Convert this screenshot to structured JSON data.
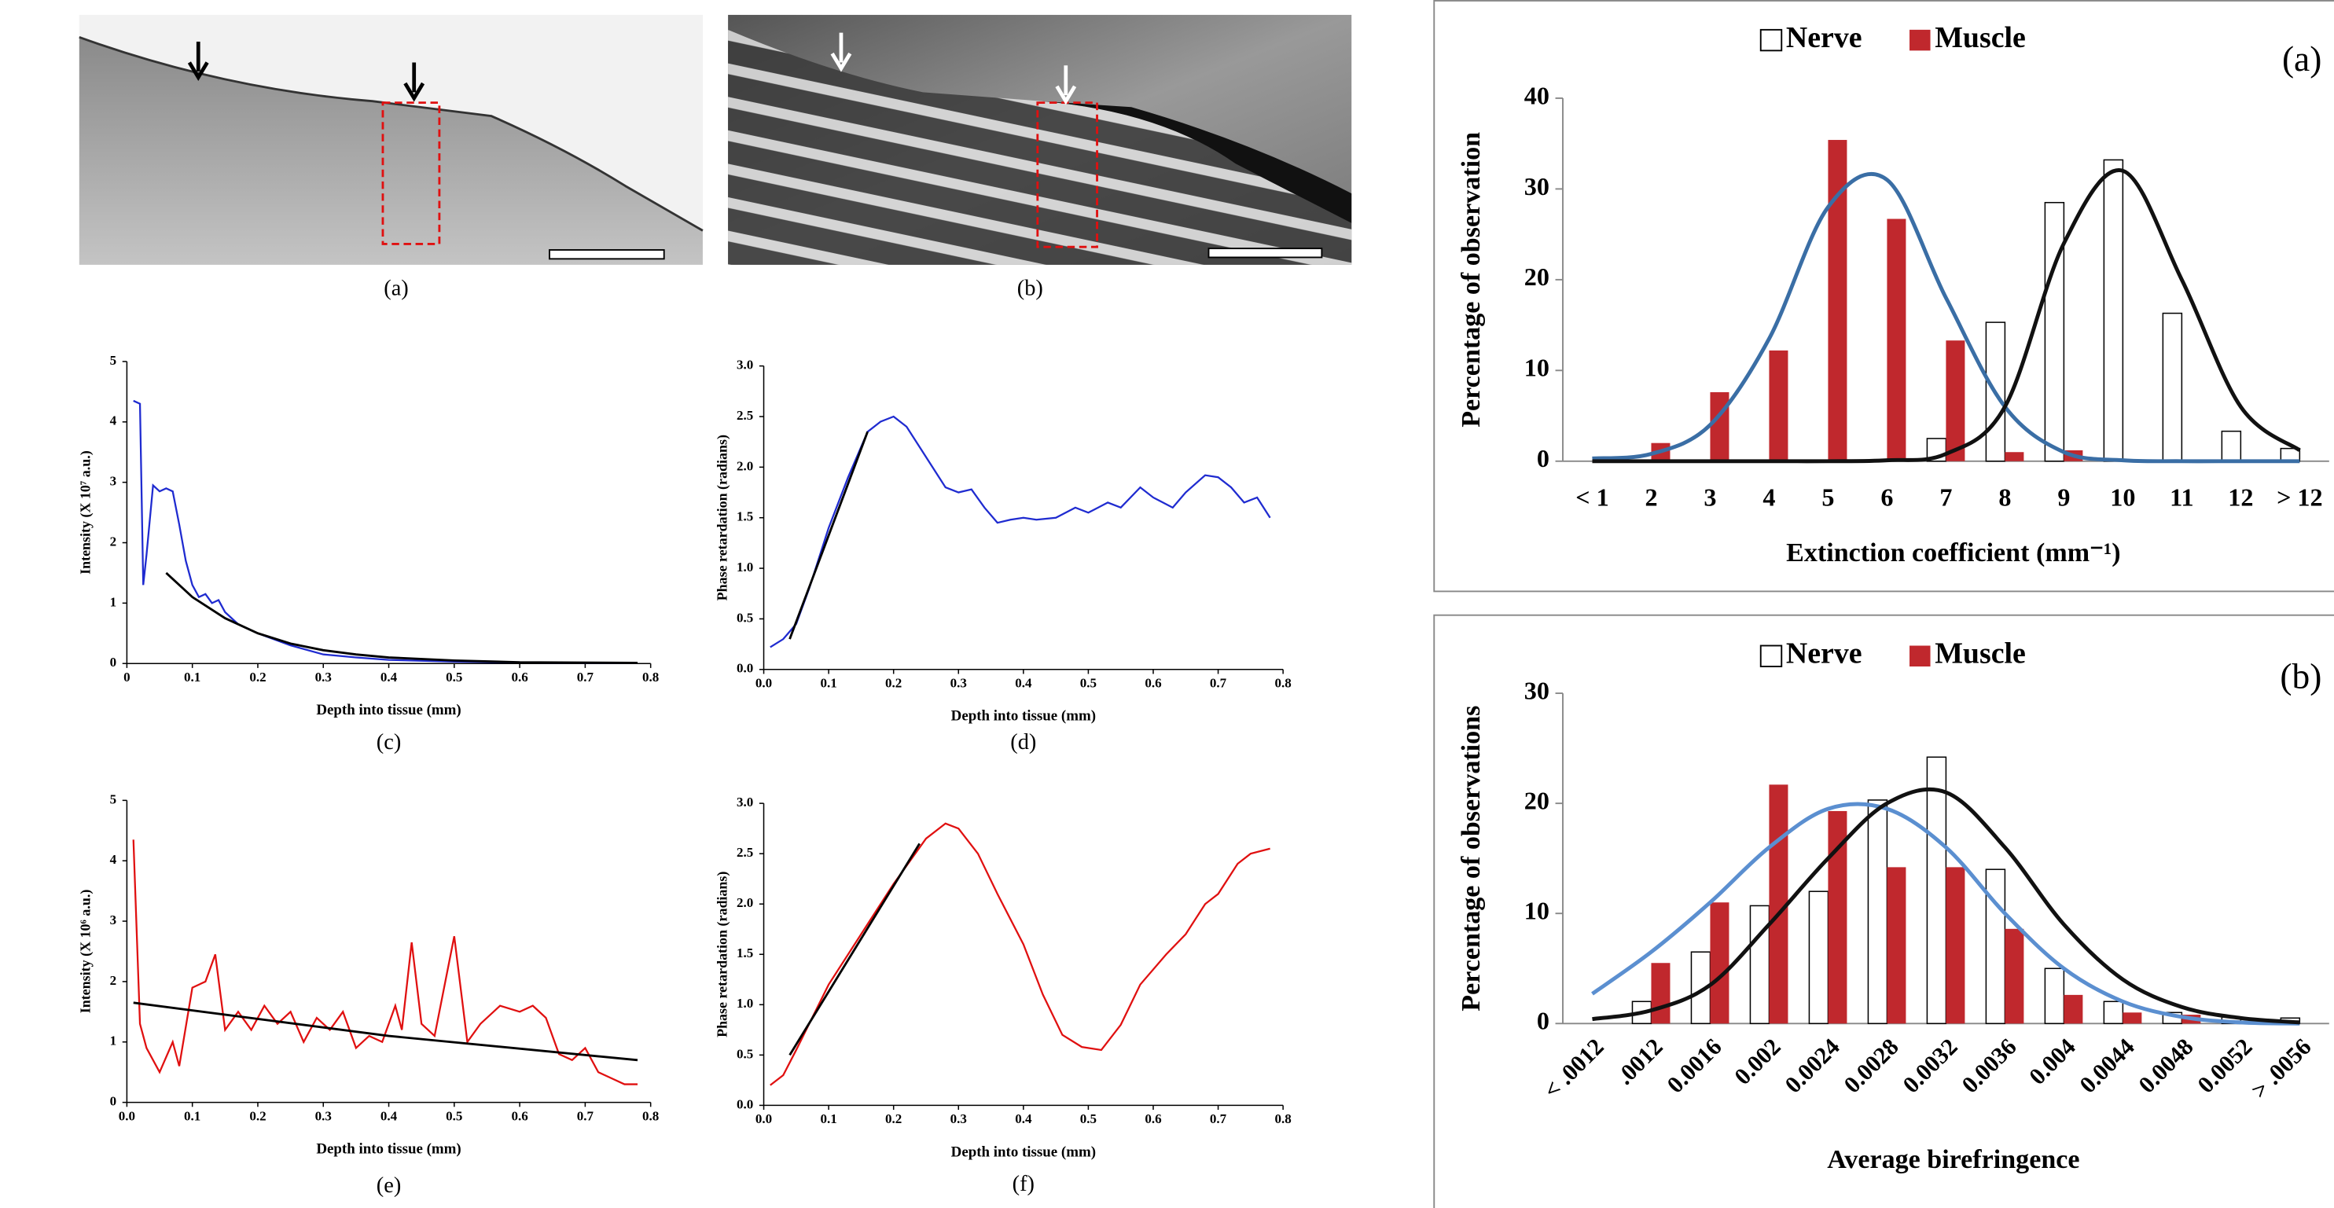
{
  "images": [
    {
      "caption": "(a)"
    },
    {
      "caption": "(b)"
    }
  ],
  "chart_data": [
    {
      "type": "line",
      "caption": "(c)",
      "xlabel": "Depth into tissue (mm)",
      "ylabel": "Intensity (X 10⁷ a.u.)",
      "xlim": [
        0,
        0.8
      ],
      "ylim": [
        0,
        5
      ],
      "xticks": [
        0,
        0.1,
        0.2,
        0.3,
        0.4,
        0.5,
        0.6,
        0.7,
        0.8
      ],
      "yticks": [
        0,
        1,
        2,
        3,
        4,
        5
      ],
      "series": [
        {
          "color": "#1f2bd0",
          "x": [
            0.01,
            0.02,
            0.025,
            0.03,
            0.04,
            0.05,
            0.06,
            0.07,
            0.08,
            0.09,
            0.1,
            0.11,
            0.12,
            0.13,
            0.14,
            0.15,
            0.17,
            0.2,
            0.25,
            0.3,
            0.35,
            0.4,
            0.5,
            0.6,
            0.7,
            0.78
          ],
          "values": [
            4.35,
            4.3,
            1.3,
            1.8,
            2.95,
            2.85,
            2.9,
            2.85,
            2.3,
            1.7,
            1.3,
            1.1,
            1.15,
            1.0,
            1.05,
            0.85,
            0.65,
            0.5,
            0.3,
            0.15,
            0.1,
            0.06,
            0.03,
            0.02,
            0.01,
            0.01
          ]
        },
        {
          "color": "#000000",
          "x": [
            0.06,
            0.1,
            0.15,
            0.2,
            0.25,
            0.3,
            0.35,
            0.4,
            0.5,
            0.6,
            0.78
          ],
          "values": [
            1.5,
            1.1,
            0.75,
            0.5,
            0.33,
            0.22,
            0.15,
            0.1,
            0.05,
            0.02,
            0.01
          ]
        }
      ]
    },
    {
      "type": "line",
      "caption": "(d)",
      "xlabel": "Depth into tissue (mm)",
      "ylabel": "Phase retardation (radians)",
      "xlim": [
        0,
        0.8
      ],
      "ylim": [
        0,
        3
      ],
      "xticks": [
        {
          "value": 0,
          "label": "0.0"
        },
        0.1,
        0.2,
        0.3,
        0.4,
        0.5,
        0.6,
        0.7,
        0.8
      ],
      "yticks": [
        {
          "value": 0,
          "label": "0.0"
        },
        0.5,
        {
          "value": 1,
          "label": "1.0"
        },
        1.5,
        {
          "value": 2,
          "label": "2.0"
        },
        2.5,
        {
          "value": 3,
          "label": "3.0"
        }
      ],
      "series": [
        {
          "color": "#1f2bd0",
          "x": [
            0.01,
            0.03,
            0.05,
            0.07,
            0.1,
            0.13,
            0.16,
            0.18,
            0.2,
            0.22,
            0.24,
            0.26,
            0.28,
            0.3,
            0.32,
            0.34,
            0.36,
            0.38,
            0.4,
            0.42,
            0.45,
            0.48,
            0.5,
            0.53,
            0.55,
            0.58,
            0.6,
            0.63,
            0.65,
            0.68,
            0.7,
            0.72,
            0.74,
            0.76,
            0.78
          ],
          "values": [
            0.22,
            0.3,
            0.45,
            0.8,
            1.4,
            1.9,
            2.35,
            2.45,
            2.5,
            2.4,
            2.2,
            2.0,
            1.8,
            1.75,
            1.78,
            1.6,
            1.45,
            1.48,
            1.5,
            1.48,
            1.5,
            1.6,
            1.55,
            1.65,
            1.6,
            1.8,
            1.7,
            1.6,
            1.75,
            1.92,
            1.9,
            1.8,
            1.65,
            1.7,
            1.5
          ]
        },
        {
          "color": "#000000",
          "x": [
            0.04,
            0.16
          ],
          "values": [
            0.3,
            2.35
          ]
        }
      ]
    },
    {
      "type": "line",
      "caption": "(e)",
      "xlabel": "Depth into tissue (mm)",
      "ylabel": "Intensity (X 10⁶ a.u.)",
      "xlim": [
        0,
        0.8
      ],
      "ylim": [
        0,
        5
      ],
      "xticks": [
        {
          "value": 0,
          "label": "0.0"
        },
        0.1,
        0.2,
        0.3,
        0.4,
        0.5,
        0.6,
        0.7,
        0.8
      ],
      "yticks": [
        0,
        1,
        2,
        3,
        4,
        5
      ],
      "series": [
        {
          "color": "#e01010",
          "x": [
            0.01,
            0.02,
            0.03,
            0.05,
            0.07,
            0.08,
            0.1,
            0.12,
            0.135,
            0.15,
            0.17,
            0.19,
            0.21,
            0.23,
            0.25,
            0.27,
            0.29,
            0.31,
            0.33,
            0.35,
            0.37,
            0.39,
            0.41,
            0.42,
            0.435,
            0.45,
            0.47,
            0.5,
            0.52,
            0.54,
            0.57,
            0.6,
            0.62,
            0.64,
            0.66,
            0.68,
            0.7,
            0.72,
            0.74,
            0.76,
            0.78
          ],
          "values": [
            4.35,
            1.3,
            0.9,
            0.5,
            1.0,
            0.6,
            1.9,
            2.0,
            2.45,
            1.2,
            1.5,
            1.2,
            1.6,
            1.3,
            1.5,
            1.0,
            1.4,
            1.2,
            1.5,
            0.9,
            1.1,
            1.0,
            1.6,
            1.2,
            2.65,
            1.3,
            1.1,
            2.75,
            1.0,
            1.3,
            1.6,
            1.5,
            1.6,
            1.4,
            0.8,
            0.7,
            0.9,
            0.5,
            0.4,
            0.3,
            0.3
          ]
        },
        {
          "color": "#000000",
          "x": [
            0.01,
            0.4,
            0.78
          ],
          "values": [
            1.65,
            1.1,
            0.7
          ]
        }
      ]
    },
    {
      "type": "line",
      "caption": "(f)",
      "xlabel": "Depth into tissue (mm)",
      "ylabel": "Phase retardation (radians)",
      "xlim": [
        0,
        0.8
      ],
      "ylim": [
        0,
        3
      ],
      "xticks": [
        {
          "value": 0,
          "label": "0.0"
        },
        0.1,
        0.2,
        0.3,
        0.4,
        0.5,
        0.6,
        0.7,
        0.8
      ],
      "yticks": [
        {
          "value": 0,
          "label": "0.0"
        },
        0.5,
        {
          "value": 1,
          "label": "1.0"
        },
        1.5,
        {
          "value": 2,
          "label": "2.0"
        },
        2.5,
        {
          "value": 3,
          "label": "3.0"
        }
      ],
      "series": [
        {
          "color": "#e01010",
          "x": [
            0.01,
            0.03,
            0.05,
            0.1,
            0.15,
            0.2,
            0.25,
            0.28,
            0.3,
            0.33,
            0.36,
            0.4,
            0.43,
            0.46,
            0.49,
            0.52,
            0.55,
            0.58,
            0.62,
            0.65,
            0.68,
            0.7,
            0.73,
            0.75,
            0.78
          ],
          "values": [
            0.2,
            0.3,
            0.55,
            1.2,
            1.7,
            2.2,
            2.65,
            2.8,
            2.75,
            2.5,
            2.1,
            1.6,
            1.1,
            0.7,
            0.58,
            0.55,
            0.8,
            1.2,
            1.5,
            1.7,
            2.0,
            2.1,
            2.4,
            2.5,
            2.55
          ]
        },
        {
          "color": "#000000",
          "x": [
            0.04,
            0.24
          ],
          "values": [
            0.5,
            2.6
          ]
        }
      ]
    },
    {
      "type": "bar",
      "panel_label": "(a)",
      "xlabel": "Extinction coefficient (mm⁻¹)",
      "ylabel": "Percentage of observation",
      "categories": [
        "< 1",
        "2",
        "3",
        "4",
        "5",
        "6",
        "7",
        "8",
        "9",
        "10",
        "11",
        "12",
        "> 12"
      ],
      "ylim": [
        0,
        40
      ],
      "yticks": [
        0,
        10,
        20,
        30,
        40
      ],
      "series": [
        {
          "name": "Nerve",
          "color": "#ffffff",
          "values": [
            0,
            0,
            0,
            0,
            0,
            0,
            2.5,
            15.3,
            28.5,
            33.2,
            16.3,
            3.3,
            1.4
          ]
        },
        {
          "name": "Muscle",
          "color": "#c0282d",
          "values": [
            0,
            2,
            7.6,
            12.2,
            35.4,
            26.7,
            13.3,
            1,
            1.2,
            0,
            0,
            0,
            0
          ]
        },
        {
          "type": "line",
          "color": "#3a6ea5",
          "values": [
            0.3,
            0.8,
            4,
            13.5,
            28,
            31,
            18,
            6,
            1,
            0.1,
            0,
            0,
            0
          ]
        },
        {
          "type": "line",
          "color": "#111111",
          "values": [
            0,
            0,
            0,
            0,
            0,
            0.1,
            0.8,
            6,
            24,
            32,
            20,
            6,
            1.2
          ]
        }
      ]
    },
    {
      "type": "bar",
      "panel_label": "(b)",
      "xlabel": "Average birefringence",
      "ylabel": "Percentage of observations",
      "categories": [
        "< .0012",
        ".0012",
        "0.0016",
        "0.002",
        "0.0024",
        "0.0028",
        "0.0032",
        "0.0036",
        "0.004",
        "0.0044",
        "0.0048",
        "0.0052",
        "> .0056"
      ],
      "xtick_rotation": -45,
      "ylim": [
        0,
        30
      ],
      "yticks": [
        0,
        10,
        20,
        30
      ],
      "series": [
        {
          "name": "Nerve",
          "color": "#ffffff",
          "values": [
            0,
            2,
            6.5,
            10.7,
            12,
            20.3,
            24.2,
            14,
            5,
            2,
            1,
            0.6,
            0.5
          ]
        },
        {
          "name": "Muscle",
          "color": "#c0282d",
          "values": [
            0,
            5.5,
            11,
            21.7,
            19.3,
            14.2,
            14.2,
            8.6,
            2.6,
            1,
            0.8,
            0,
            0
          ]
        },
        {
          "type": "line",
          "color": "#5b8fd0",
          "values": [
            2.7,
            6.5,
            11,
            16,
            19.5,
            19.5,
            16,
            10,
            5,
            2,
            0.6,
            0.1,
            0
          ]
        },
        {
          "type": "line",
          "color": "#111111",
          "values": [
            0.4,
            1.2,
            3.5,
            9,
            15,
            20,
            21,
            16,
            9,
            4,
            1.5,
            0.5,
            0.1
          ]
        }
      ]
    }
  ]
}
